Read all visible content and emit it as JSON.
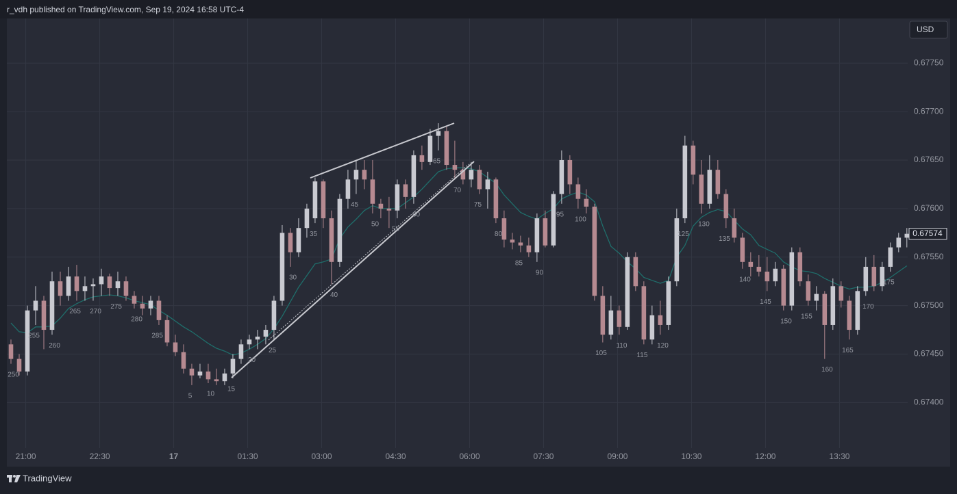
{
  "header": {
    "source": "r_vdh published on TradingView.com, Sep 19, 2024 16:58 UTC-4"
  },
  "footer": {
    "brand": "TradingView"
  },
  "chart_data": {
    "type": "candlestick",
    "currency": "USD",
    "up_color": "#c9cad1",
    "down_color": "#b68a91",
    "grid": true,
    "xlim": [
      -0.5,
      109.1
    ],
    "ylim": [
      0.67353,
      0.67796
    ],
    "xticks": [
      {
        "value": 1.8,
        "label": "21:00"
      },
      {
        "value": 10.8,
        "label": "22:30"
      },
      {
        "value": 19.8,
        "label": "17",
        "bold": true
      },
      {
        "value": 28.8,
        "label": "01:30"
      },
      {
        "value": 37.8,
        "label": "03:00"
      },
      {
        "value": 46.8,
        "label": "04:30"
      },
      {
        "value": 55.8,
        "label": "06:00"
      },
      {
        "value": 64.8,
        "label": "07:30"
      },
      {
        "value": 73.8,
        "label": "09:00"
      },
      {
        "value": 82.8,
        "label": "10:30"
      },
      {
        "value": 91.8,
        "label": "12:00"
      },
      {
        "value": 100.8,
        "label": "13:30"
      }
    ],
    "yticks": [
      {
        "value": 0.674,
        "label": "0.67400"
      },
      {
        "value": 0.6745,
        "label": "0.67450"
      },
      {
        "value": 0.675,
        "label": "0.67500"
      },
      {
        "value": 0.6755,
        "label": "0.67550"
      },
      {
        "value": 0.676,
        "label": "0.67600"
      },
      {
        "value": 0.6765,
        "label": "0.67650"
      },
      {
        "value": 0.677,
        "label": "0.67700"
      },
      {
        "value": 0.6775,
        "label": "0.67750"
      }
    ],
    "ohlc": [
      [
        0.6746,
        0.67465,
        0.6744,
        0.67445
      ],
      [
        0.67445,
        0.6745,
        0.67428,
        0.67432
      ],
      [
        0.67432,
        0.675,
        0.67428,
        0.67495
      ],
      [
        0.67495,
        0.6752,
        0.6748,
        0.67505
      ],
      [
        0.67505,
        0.6751,
        0.67455,
        0.67475
      ],
      [
        0.67475,
        0.67535,
        0.6747,
        0.67525
      ],
      [
        0.67525,
        0.67535,
        0.675,
        0.6751
      ],
      [
        0.6751,
        0.6754,
        0.67505,
        0.6753
      ],
      [
        0.6753,
        0.67542,
        0.67505,
        0.67515
      ],
      [
        0.67515,
        0.6753,
        0.67505,
        0.6752
      ],
      [
        0.6752,
        0.67528,
        0.67505,
        0.67522
      ],
      [
        0.67522,
        0.67538,
        0.6751,
        0.6753
      ],
      [
        0.6753,
        0.67533,
        0.6751,
        0.67518
      ],
      [
        0.67518,
        0.67535,
        0.6751,
        0.67525
      ],
      [
        0.67525,
        0.6753,
        0.67505,
        0.6751
      ],
      [
        0.6751,
        0.67515,
        0.67497,
        0.67502
      ],
      [
        0.67502,
        0.6751,
        0.6749,
        0.67497
      ],
      [
        0.67497,
        0.6751,
        0.6749,
        0.67505
      ],
      [
        0.67505,
        0.6751,
        0.6748,
        0.67485
      ],
      [
        0.67485,
        0.6749,
        0.67458,
        0.67462
      ],
      [
        0.67462,
        0.6747,
        0.67448,
        0.67452
      ],
      [
        0.67452,
        0.6746,
        0.6743,
        0.67435
      ],
      [
        0.67435,
        0.6744,
        0.67418,
        0.67428
      ],
      [
        0.67428,
        0.6744,
        0.67425,
        0.67432
      ],
      [
        0.67432,
        0.6744,
        0.6742,
        0.67424
      ],
      [
        0.67424,
        0.67435,
        0.67418,
        0.67422
      ],
      [
        0.67422,
        0.67435,
        0.67418,
        0.6743
      ],
      [
        0.6743,
        0.6745,
        0.67425,
        0.67445
      ],
      [
        0.67445,
        0.67465,
        0.6744,
        0.6746
      ],
      [
        0.6746,
        0.6747,
        0.67455,
        0.67465
      ],
      [
        0.67465,
        0.67475,
        0.67455,
        0.67468
      ],
      [
        0.67468,
        0.6748,
        0.6746,
        0.67475
      ],
      [
        0.67475,
        0.6751,
        0.67465,
        0.67505
      ],
      [
        0.67505,
        0.67583,
        0.675,
        0.67575
      ],
      [
        0.67575,
        0.6758,
        0.6754,
        0.67555
      ],
      [
        0.67555,
        0.6759,
        0.6755,
        0.6758
      ],
      [
        0.6758,
        0.67605,
        0.6757,
        0.676
      ],
      [
        0.6759,
        0.67632,
        0.67585,
        0.67628
      ],
      [
        0.67628,
        0.6763,
        0.6758,
        0.6759
      ],
      [
        0.6759,
        0.67598,
        0.67522,
        0.67545
      ],
      [
        0.67545,
        0.67615,
        0.6754,
        0.6761
      ],
      [
        0.6761,
        0.6764,
        0.676,
        0.6763
      ],
      [
        0.6763,
        0.6765,
        0.67615,
        0.6764
      ],
      [
        0.6764,
        0.6765,
        0.6762,
        0.6763
      ],
      [
        0.6763,
        0.6765,
        0.67595,
        0.67605
      ],
      [
        0.67605,
        0.6761,
        0.6759,
        0.676
      ],
      [
        0.676,
        0.67612,
        0.6758,
        0.67598
      ],
      [
        0.67598,
        0.6763,
        0.6759,
        0.67625
      ],
      [
        0.67625,
        0.6763,
        0.676,
        0.67612
      ],
      [
        0.67612,
        0.6766,
        0.67605,
        0.67655
      ],
      [
        0.67655,
        0.67665,
        0.6764,
        0.67648
      ],
      [
        0.67648,
        0.67682,
        0.67645,
        0.67675
      ],
      [
        0.67675,
        0.67688,
        0.6766,
        0.6768
      ],
      [
        0.6768,
        0.67685,
        0.6764,
        0.67645
      ],
      [
        0.67645,
        0.6767,
        0.6763,
        0.6764
      ],
      [
        0.6764,
        0.67648,
        0.67625,
        0.6763
      ],
      [
        0.6763,
        0.67648,
        0.67622,
        0.6764
      ],
      [
        0.6764,
        0.67645,
        0.67615,
        0.6762
      ],
      [
        0.6762,
        0.67638,
        0.676,
        0.6763
      ],
      [
        0.6763,
        0.67632,
        0.67585,
        0.6759
      ],
      [
        0.6759,
        0.67598,
        0.6756,
        0.67568
      ],
      [
        0.67568,
        0.67575,
        0.67558,
        0.67565
      ],
      [
        0.67565,
        0.67572,
        0.67555,
        0.67562
      ],
      [
        0.67562,
        0.6757,
        0.6755,
        0.67555
      ],
      [
        0.67555,
        0.67595,
        0.67545,
        0.6759
      ],
      [
        0.6759,
        0.67598,
        0.6756,
        0.67562
      ],
      [
        0.67562,
        0.67618,
        0.6756,
        0.67615
      ],
      [
        0.67615,
        0.6766,
        0.67605,
        0.6765
      ],
      [
        0.6765,
        0.67655,
        0.67615,
        0.67625
      ],
      [
        0.67625,
        0.67632,
        0.676,
        0.6761
      ],
      [
        0.6761,
        0.6762,
        0.67595,
        0.67602
      ],
      [
        0.67602,
        0.67605,
        0.67505,
        0.6751
      ],
      [
        0.6751,
        0.6752,
        0.67462,
        0.6747
      ],
      [
        0.6747,
        0.6751,
        0.67465,
        0.67495
      ],
      [
        0.67495,
        0.675,
        0.6747,
        0.67478
      ],
      [
        0.67478,
        0.67555,
        0.67475,
        0.6755
      ],
      [
        0.6755,
        0.67555,
        0.67515,
        0.6752
      ],
      [
        0.6752,
        0.67525,
        0.6746,
        0.67465
      ],
      [
        0.67465,
        0.675,
        0.6746,
        0.6749
      ],
      [
        0.6749,
        0.67505,
        0.6747,
        0.6748
      ],
      [
        0.6748,
        0.6753,
        0.67475,
        0.67525
      ],
      [
        0.67525,
        0.676,
        0.6752,
        0.6759
      ],
      [
        0.6759,
        0.67675,
        0.67585,
        0.67665
      ],
      [
        0.67665,
        0.6767,
        0.67625,
        0.67635
      ],
      [
        0.67635,
        0.6765,
        0.67595,
        0.67605
      ],
      [
        0.67605,
        0.67655,
        0.676,
        0.6764
      ],
      [
        0.6764,
        0.6765,
        0.6761,
        0.67615
      ],
      [
        0.67615,
        0.6762,
        0.6758,
        0.6759
      ],
      [
        0.6759,
        0.676,
        0.67565,
        0.6757
      ],
      [
        0.6757,
        0.67575,
        0.67538,
        0.67545
      ],
      [
        0.67545,
        0.67555,
        0.6753,
        0.6754
      ],
      [
        0.6754,
        0.67552,
        0.6753,
        0.67535
      ],
      [
        0.67535,
        0.6755,
        0.67515,
        0.67525
      ],
      [
        0.67525,
        0.67545,
        0.6752,
        0.67538
      ],
      [
        0.67538,
        0.67542,
        0.67495,
        0.675
      ],
      [
        0.675,
        0.6756,
        0.67495,
        0.67555
      ],
      [
        0.67555,
        0.6756,
        0.6752,
        0.67525
      ],
      [
        0.67525,
        0.67532,
        0.675,
        0.67505
      ],
      [
        0.67505,
        0.6752,
        0.67495,
        0.67512
      ],
      [
        0.67512,
        0.67515,
        0.67445,
        0.6748
      ],
      [
        0.6748,
        0.67528,
        0.67475,
        0.6752
      ],
      [
        0.6752,
        0.67525,
        0.67498,
        0.67505
      ],
      [
        0.67505,
        0.6751,
        0.67465,
        0.67475
      ],
      [
        0.67475,
        0.6752,
        0.6747,
        0.67515
      ],
      [
        0.67515,
        0.6755,
        0.6751,
        0.6754
      ],
      [
        0.6754,
        0.67552,
        0.67515,
        0.6752
      ],
      [
        0.6752,
        0.67545,
        0.67515,
        0.6754
      ],
      [
        0.6754,
        0.67565,
        0.67535,
        0.6756
      ],
      [
        0.6756,
        0.67575,
        0.67555,
        0.6757
      ],
      [
        0.6757,
        0.6758,
        0.6756,
        0.67574
      ]
    ],
    "ma": {
      "color": "#1f6e6b",
      "values": [
        0.67482,
        0.67473,
        0.67472,
        0.67478,
        0.67478,
        0.67479,
        0.67487,
        0.67497,
        0.67502,
        0.67506,
        0.67509,
        0.6751,
        0.67511,
        0.6751,
        0.67508,
        0.67505,
        0.67503,
        0.67501,
        0.67495,
        0.6749,
        0.67484,
        0.67478,
        0.67473,
        0.67467,
        0.67461,
        0.67456,
        0.67453,
        0.67449,
        0.67451,
        0.67455,
        0.6746,
        0.67466,
        0.67476,
        0.67489,
        0.67504,
        0.67519,
        0.67531,
        0.67543,
        0.67545,
        0.67548,
        0.67569,
        0.67581,
        0.67589,
        0.67598,
        0.67603,
        0.676,
        0.676,
        0.676,
        0.67606,
        0.67612,
        0.6762,
        0.67629,
        0.67638,
        0.67641,
        0.67642,
        0.67642,
        0.67641,
        0.67638,
        0.67632,
        0.67626,
        0.67614,
        0.67605,
        0.67596,
        0.67592,
        0.67589,
        0.67595,
        0.676,
        0.6761,
        0.67614,
        0.67617,
        0.67614,
        0.67607,
        0.67582,
        0.67561,
        0.67554,
        0.67545,
        0.67538,
        0.67529,
        0.67526,
        0.67523,
        0.67526,
        0.6755,
        0.67562,
        0.67582,
        0.67591,
        0.67596,
        0.67599,
        0.67597,
        0.67588,
        0.67579,
        0.67573,
        0.67562,
        0.67558,
        0.67554,
        0.67545,
        0.6754,
        0.67536,
        0.67535,
        0.67533,
        0.67528,
        0.67524,
        0.6752,
        0.67517,
        0.67519,
        0.67519,
        0.6752,
        0.67524,
        0.67529,
        0.67535,
        0.67541
      ]
    },
    "last_price_label": "0.67574",
    "bar_labels": [
      {
        "x": 0.3,
        "text": "250"
      },
      {
        "x": 2.8,
        "text": "255"
      },
      {
        "x": 5.3,
        "text": "260"
      },
      {
        "x": 7.8,
        "text": "265"
      },
      {
        "x": 10.3,
        "text": "270"
      },
      {
        "x": 12.8,
        "text": "275"
      },
      {
        "x": 15.3,
        "text": "280"
      },
      {
        "x": 17.8,
        "text": "285"
      },
      {
        "x": 21.8,
        "text": "5"
      },
      {
        "x": 24.3,
        "text": "10"
      },
      {
        "x": 26.8,
        "text": "15"
      },
      {
        "x": 29.3,
        "text": "20"
      },
      {
        "x": 31.8,
        "text": "25"
      },
      {
        "x": 34.3,
        "text": "30"
      },
      {
        "x": 36.8,
        "text": "35"
      },
      {
        "x": 39.3,
        "text": "40"
      },
      {
        "x": 41.8,
        "text": "45"
      },
      {
        "x": 44.3,
        "text": "50"
      },
      {
        "x": 46.8,
        "text": "55"
      },
      {
        "x": 49.3,
        "text": "60"
      },
      {
        "x": 51.8,
        "text": "65"
      },
      {
        "x": 54.3,
        "text": "70"
      },
      {
        "x": 56.8,
        "text": "75"
      },
      {
        "x": 59.3,
        "text": "80"
      },
      {
        "x": 61.8,
        "text": "85"
      },
      {
        "x": 64.3,
        "text": "90"
      },
      {
        "x": 66.8,
        "text": "95"
      },
      {
        "x": 69.3,
        "text": "100"
      },
      {
        "x": 71.8,
        "text": "105"
      },
      {
        "x": 74.3,
        "text": "110"
      },
      {
        "x": 76.8,
        "text": "115"
      },
      {
        "x": 79.3,
        "text": "120"
      },
      {
        "x": 81.8,
        "text": "125"
      },
      {
        "x": 84.3,
        "text": "130"
      },
      {
        "x": 86.8,
        "text": "135"
      },
      {
        "x": 89.3,
        "text": "140"
      },
      {
        "x": 91.8,
        "text": "145"
      },
      {
        "x": 94.3,
        "text": "150"
      },
      {
        "x": 96.8,
        "text": "155"
      },
      {
        "x": 99.3,
        "text": "160"
      },
      {
        "x": 101.8,
        "text": "165"
      },
      {
        "x": 104.3,
        "text": "170"
      },
      {
        "x": 106.8,
        "text": "175"
      }
    ]
  }
}
